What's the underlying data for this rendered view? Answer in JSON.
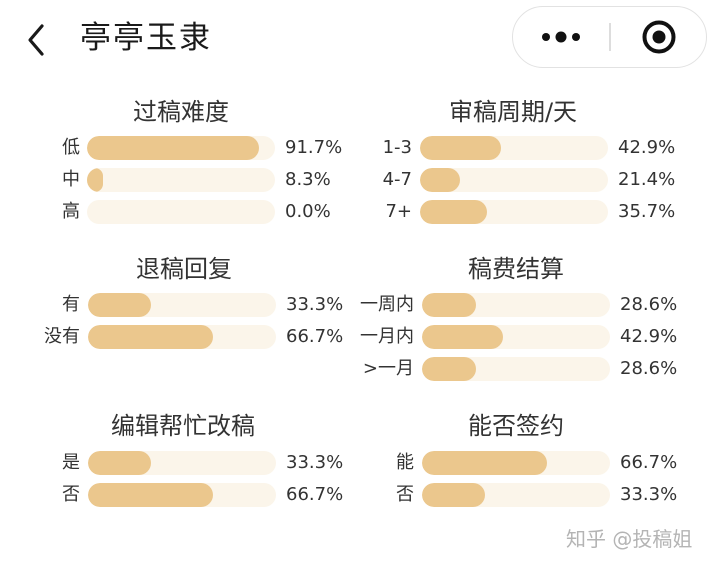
{
  "header": {
    "title": "亭亭玉隶",
    "back_icon": "chevron-left-icon",
    "more_icon": "more-dots-icon",
    "close_icon": "target-circle-icon"
  },
  "colors": {
    "bar_fill": "#ebc78d",
    "bar_track": "#fbf5ea",
    "text": "#333333",
    "watermark": "#b4b4b4"
  },
  "panels": [
    {
      "title": "过稿难度",
      "rows": [
        {
          "label": "低",
          "value": "91.7%",
          "percent": 91.7
        },
        {
          "label": "中",
          "value": "8.3%",
          "percent": 8.3
        },
        {
          "label": "高",
          "value": "0.0%",
          "percent": 0.0
        }
      ]
    },
    {
      "title": "审稿周期/天",
      "rows": [
        {
          "label": "1-3",
          "value": "42.9%",
          "percent": 42.9
        },
        {
          "label": "4-7",
          "value": "21.4%",
          "percent": 21.4
        },
        {
          "label": "7+",
          "value": "35.7%",
          "percent": 35.7
        }
      ]
    },
    {
      "title": "退稿回复",
      "rows": [
        {
          "label": "有",
          "value": "33.3%",
          "percent": 33.3
        },
        {
          "label": "没有",
          "value": "66.7%",
          "percent": 66.7
        }
      ]
    },
    {
      "title": "稿费结算",
      "rows": [
        {
          "label": "一周内",
          "value": "28.6%",
          "percent": 28.6
        },
        {
          "label": "一月内",
          "value": "42.9%",
          "percent": 42.9
        },
        {
          "label": ">一月",
          "value": "28.6%",
          "percent": 28.6
        }
      ]
    },
    {
      "title": "编辑帮忙改稿",
      "rows": [
        {
          "label": "是",
          "value": "33.3%",
          "percent": 33.3
        },
        {
          "label": "否",
          "value": "66.7%",
          "percent": 66.7
        }
      ]
    },
    {
      "title": "能否签约",
      "rows": [
        {
          "label": "能",
          "value": "66.7%",
          "percent": 66.7
        },
        {
          "label": "否",
          "value": "33.3%",
          "percent": 33.3
        }
      ]
    }
  ],
  "watermark": "知乎 @投稿姐"
}
